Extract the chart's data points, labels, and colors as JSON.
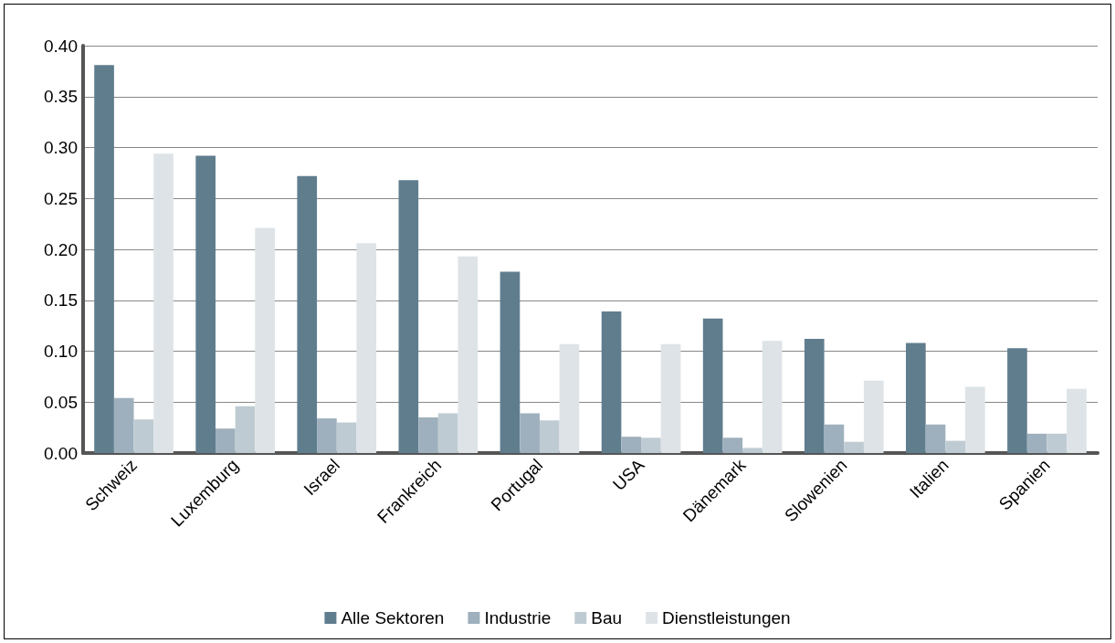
{
  "chart_data": {
    "type": "bar",
    "categories": [
      "Schweiz",
      "Luxemburg",
      "Israel",
      "Frankreich",
      "Portugal",
      "USA",
      "Dänemark",
      "Slowenien",
      "Italien",
      "Spanien"
    ],
    "series": [
      {
        "name": "Alle Sektoren",
        "color": "#607d8e",
        "values": [
          0.381,
          0.292,
          0.272,
          0.268,
          0.178,
          0.139,
          0.132,
          0.112,
          0.108,
          0.103
        ]
      },
      {
        "name": "Industrie",
        "color": "#9eb0bd",
        "values": [
          0.054,
          0.024,
          0.034,
          0.035,
          0.039,
          0.016,
          0.015,
          0.028,
          0.028,
          0.019
        ]
      },
      {
        "name": "Bau",
        "color": "#bfcbd2",
        "values": [
          0.033,
          0.046,
          0.03,
          0.039,
          0.032,
          0.015,
          0.005,
          0.011,
          0.012,
          0.019
        ]
      },
      {
        "name": "Dienstleistungen",
        "color": "#dde3e7",
        "values": [
          0.294,
          0.221,
          0.206,
          0.193,
          0.107,
          0.107,
          0.11,
          0.071,
          0.065,
          0.063
        ]
      }
    ],
    "ylim": [
      0,
      0.4
    ],
    "yticks": [
      {
        "value": 0,
        "label": "0.00"
      },
      {
        "value": 0.05,
        "label": "0.05"
      },
      {
        "value": 0.1,
        "label": "0.10"
      },
      {
        "value": 0.15,
        "label": "0.15"
      },
      {
        "value": 0.2,
        "label": "0.20"
      },
      {
        "value": 0.25,
        "label": "0.25"
      },
      {
        "value": 0.3,
        "label": "0.30"
      },
      {
        "value": 0.35,
        "label": "0.35"
      },
      {
        "value": 0.4,
        "label": "0.40"
      }
    ],
    "grid": "y",
    "legend": "bottom"
  }
}
